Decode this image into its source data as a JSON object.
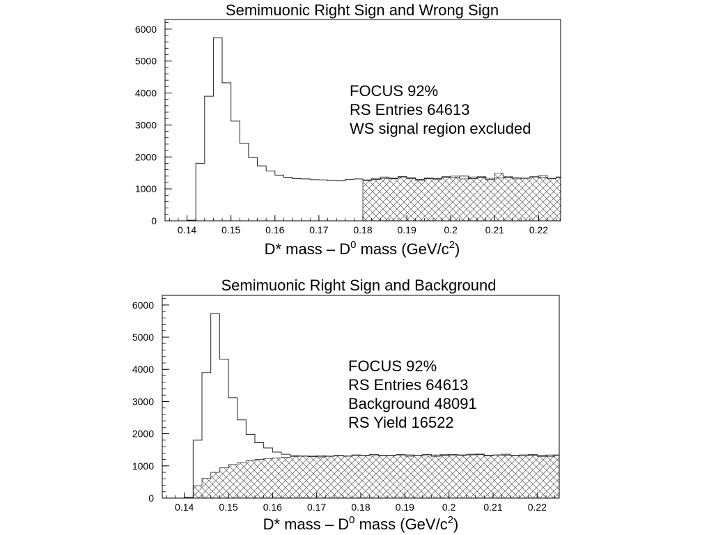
{
  "charts": [
    {
      "title": "Semimuonic Right Sign and Wrong Sign",
      "xlabel_main": "D* mass – D",
      "xlabel_sup": "0",
      "xlabel_rest": " mass (GeV/c",
      "xlabel_sup2": "2",
      "xlabel_end": ")",
      "annotations": [
        "FOCUS 92%",
        "RS Entries 64613",
        "WS signal region excluded"
      ]
    },
    {
      "title": "Semimuonic Right Sign and Background",
      "xlabel_main": "D* mass – D",
      "xlabel_sup": "0",
      "xlabel_rest": " mass (GeV/c",
      "xlabel_sup2": "2",
      "xlabel_end": ")",
      "annotations": [
        "FOCUS 92%",
        "RS Entries 64613",
        "Background 48091",
        "RS Yield 16522"
      ]
    }
  ],
  "chart_data": [
    {
      "type": "area",
      "title": "Semimuonic Right Sign and Wrong Sign",
      "xlabel": "D* mass – D0 mass (GeV/c2)",
      "ylabel": "",
      "xlim": [
        0.135,
        0.225
      ],
      "ylim": [
        0,
        6300
      ],
      "x_ticks": [
        "0.14",
        "0.15",
        "0.16",
        "0.17",
        "0.18",
        "0.19",
        "0.2",
        "0.21",
        "0.22"
      ],
      "y_ticks": [
        "0",
        "1000",
        "2000",
        "3000",
        "4000",
        "5000",
        "6000"
      ],
      "bin_width": 0.002,
      "bin_start": 0.138,
      "series": [
        {
          "values": [
            0,
            20,
            1800,
            3900,
            5730,
            4320,
            3120,
            2430,
            1980,
            1720,
            1560,
            1430,
            1360,
            1320,
            1310,
            1290,
            1280,
            1260,
            1250,
            1300,
            1310,
            1280,
            1300,
            1330,
            1320,
            1370,
            1350,
            1300,
            1340,
            1320,
            1380,
            1350,
            1400,
            1320,
            1360,
            1290,
            1340,
            1360,
            1350,
            1330,
            1380,
            1350,
            1320,
            1370
          ]
        },
        {
          "style": "crosshatch",
          "bin_start": 0.18,
          "values": [
            1260,
            1330,
            1370,
            1340,
            1390,
            1320,
            1260,
            1320,
            1290,
            1360,
            1400,
            1310,
            1370,
            1380,
            1330,
            1490,
            1390,
            1310,
            1340,
            1370,
            1420,
            1330,
            1360
          ]
        }
      ]
    },
    {
      "type": "area",
      "title": "Semimuonic Right Sign and Background",
      "xlabel": "D* mass – D0 mass (GeV/c2)",
      "ylabel": "",
      "xlim": [
        0.135,
        0.225
      ],
      "ylim": [
        0,
        6300
      ],
      "x_ticks": [
        "0.14",
        "0.15",
        "0.16",
        "0.17",
        "0.18",
        "0.19",
        "0.2",
        "0.21",
        "0.22"
      ],
      "y_ticks": [
        "0",
        "1000",
        "2000",
        "3000",
        "4000",
        "5000",
        "6000"
      ],
      "bin_width": 0.002,
      "bin_start": 0.138,
      "series": [
        {
          "values": [
            0,
            20,
            1800,
            3900,
            5730,
            4320,
            3120,
            2430,
            1980,
            1720,
            1560,
            1430,
            1360,
            1320,
            1310,
            1290,
            1280,
            1300,
            1320,
            1310,
            1340,
            1330,
            1350,
            1320,
            1330,
            1350,
            1340,
            1330,
            1350,
            1300,
            1330,
            1350,
            1340,
            1360,
            1350,
            1330,
            1340,
            1360,
            1330,
            1340,
            1350,
            1330,
            1300,
            1340
          ]
        },
        {
          "style": "crosshatch",
          "values": [
            0,
            20,
            380,
            620,
            800,
            940,
            1040,
            1100,
            1160,
            1200,
            1230,
            1250,
            1270,
            1290,
            1300,
            1310,
            1320,
            1310,
            1330,
            1300,
            1330,
            1320,
            1310,
            1330,
            1320,
            1340,
            1300,
            1330,
            1310,
            1340,
            1350,
            1320,
            1330,
            1340,
            1370,
            1310,
            1340,
            1330,
            1320,
            1310,
            1330,
            1290,
            1340,
            1330
          ]
        }
      ]
    }
  ]
}
